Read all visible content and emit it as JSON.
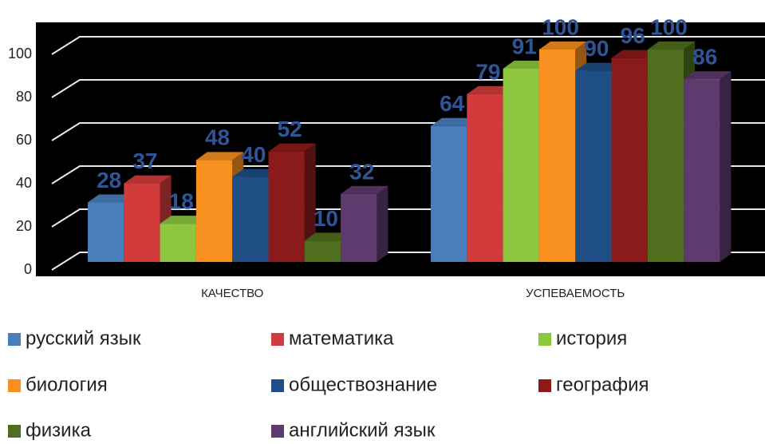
{
  "chart_data": {
    "type": "bar3d",
    "categories": [
      "КАЧЕСТВО",
      "УСПЕВАЕМОСТЬ"
    ],
    "series": [
      {
        "name": "русский язык",
        "color": "#4a7ebb",
        "values": [
          28,
          64
        ]
      },
      {
        "name": "математика",
        "color": "#d23b3b",
        "values": [
          37,
          79
        ]
      },
      {
        "name": "история",
        "color": "#8dc63f",
        "values": [
          18,
          91
        ]
      },
      {
        "name": "биология",
        "color": "#f7901e",
        "values": [
          48,
          100
        ]
      },
      {
        "name": "обществознание",
        "color": "#1f4e85",
        "values": [
          40,
          90
        ]
      },
      {
        "name": "география",
        "color": "#8b1a1a",
        "values": [
          52,
          96
        ]
      },
      {
        "name": "физика",
        "color": "#4f6f1e",
        "values": [
          10,
          100
        ]
      },
      {
        "name": "английский язык",
        "color": "#5e3a6e",
        "values": [
          32,
          86
        ]
      }
    ],
    "ylim": [
      0,
      100
    ],
    "yticks": [
      0,
      20,
      40,
      60,
      80,
      100
    ],
    "grid": true,
    "legend": "bottom"
  }
}
